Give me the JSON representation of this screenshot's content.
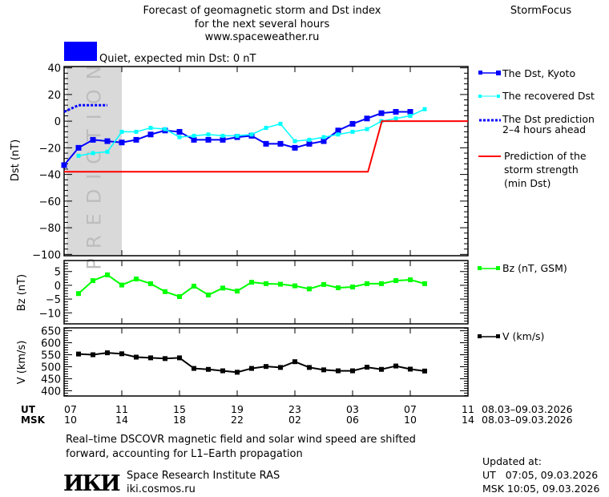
{
  "header": {
    "title_lines": [
      "Forecast of geomagnetic storm and Dst index",
      "for the next several hours",
      "www.spaceweather.ru"
    ],
    "brand": "StormFocus",
    "status_color": "#0000ff",
    "status_text": "Quiet, expected min Dst: 0 nT"
  },
  "prediction_label": "PREDICTION",
  "legend": {
    "kyoto": "The Dst, Kyoto",
    "recovered": "The recovered Dst",
    "prediction": [
      "The Dst prediction",
      "2–4 hours ahead"
    ],
    "storm": [
      "Prediction of the",
      "storm strength",
      "(min Dst)"
    ],
    "bz": "Bz (nT, GSM)",
    "v": "V (km/s)"
  },
  "time_axis": {
    "ut_label": "UT",
    "msk_label": "MSK",
    "ut_ticks": [
      "07",
      "11",
      "15",
      "19",
      "23",
      "03",
      "07",
      "11"
    ],
    "msk_ticks": [
      "10",
      "14",
      "18",
      "22",
      "02",
      "06",
      "10",
      "14"
    ],
    "date_range": "08.03–09.03.2026"
  },
  "footnote": [
    "Real–time DSCOVR magnetic field and solar wind speed are shifted",
    "forward, accounting for L1–Earth propagation"
  ],
  "institute": {
    "logo": "ИКИ",
    "name": "Space Research Institute RAS",
    "url": "iki.cosmos.ru"
  },
  "updated": {
    "label": "Updated at:",
    "ut": "UT   07:05, 09.03.2026",
    "msk": "MSK 10:05, 09.03.2026"
  },
  "chart_data": [
    {
      "type": "line",
      "ylabel": "Dst (nT)",
      "xlim_ut": [
        "07:00",
        "11:00"
      ],
      "ylim": [
        -101,
        41
      ],
      "yticks": [
        40,
        20,
        0,
        -20,
        -40,
        -60,
        -80,
        -100
      ],
      "prediction_region_ut": [
        "07:10",
        "11:00"
      ],
      "series": [
        {
          "name": "The Dst, Kyoto",
          "color": "#0000ff",
          "marker": "square",
          "x": [
            "07:00",
            "08:00",
            "09:00",
            "10:00",
            "11:00",
            "12:00",
            "13:00",
            "14:00",
            "15:00",
            "16:00",
            "17:00",
            "18:00",
            "19:00",
            "20:00",
            "21:00",
            "22:00",
            "23:00",
            "00:00",
            "01:00",
            "02:00",
            "03:00",
            "04:00",
            "05:00",
            "06:00",
            "07:00"
          ],
          "values": [
            -33,
            -20,
            -14,
            -15,
            -16,
            -14,
            -10,
            -7,
            -8,
            -14,
            -14,
            -14,
            -12,
            -11,
            -17,
            -17,
            -20,
            -17,
            -15,
            -7,
            -2,
            2,
            6,
            7,
            7
          ]
        },
        {
          "name": "The recovered Dst",
          "color": "#00ffff",
          "marker": "small-square",
          "x": [
            "08:00",
            "09:00",
            "10:00",
            "11:00",
            "12:00",
            "13:00",
            "14:00",
            "15:00",
            "16:00",
            "17:00",
            "18:00",
            "19:00",
            "20:00",
            "21:00",
            "22:00",
            "23:00",
            "00:00",
            "01:00",
            "02:00",
            "03:00",
            "04:00",
            "05:00",
            "06:00",
            "07:00",
            "08:00"
          ],
          "values": [
            -26,
            -24,
            -23,
            -8,
            -8,
            -5,
            -6,
            -12,
            -11,
            -10,
            -11,
            -11,
            -10,
            -5,
            -2,
            -15,
            -14,
            -12,
            -10,
            -8,
            -6,
            0,
            2,
            4,
            9
          ]
        },
        {
          "name": "The Dst prediction 2–4 hours ahead",
          "color": "#0000ff",
          "style": "dotted",
          "x": [
            "07:00",
            "08:00",
            "09:00",
            "10:00"
          ],
          "values": [
            7,
            12,
            12,
            12
          ]
        },
        {
          "name": "Prediction of the storm strength (min Dst)",
          "color": "#ff0000",
          "x": [
            "07:00",
            "04:04",
            "05:02",
            "11:00"
          ],
          "values": [
            -38,
            -38,
            0,
            0
          ]
        }
      ]
    },
    {
      "type": "line",
      "ylabel": "Bz (nT)",
      "ylim": [
        -14,
        9
      ],
      "yticks": [
        5,
        0,
        -5,
        -10
      ],
      "series": [
        {
          "name": "Bz (nT, GSM)",
          "color": "#00ff00",
          "marker": "square",
          "x": [
            "08:00",
            "09:00",
            "10:00",
            "11:00",
            "12:00",
            "13:00",
            "14:00",
            "15:00",
            "16:00",
            "17:00",
            "18:00",
            "19:00",
            "20:00",
            "21:00",
            "22:00",
            "23:00",
            "00:00",
            "01:00",
            "02:00",
            "03:00",
            "04:00",
            "05:00",
            "06:00",
            "07:00",
            "08:00"
          ],
          "values": [
            -3.0,
            1.7,
            3.8,
            0.1,
            2.3,
            0.6,
            -2.3,
            -4.1,
            -0.3,
            -3.5,
            -1.0,
            -2.1,
            1.1,
            0.6,
            0.4,
            -0.2,
            -1.3,
            0.3,
            -0.9,
            -0.6,
            0.6,
            0.6,
            1.7,
            2.0,
            0.6
          ]
        }
      ]
    },
    {
      "type": "line",
      "ylabel": "V (km/s)",
      "ylim": [
        378,
        662
      ],
      "yticks": [
        650,
        600,
        550,
        500,
        450,
        400
      ],
      "series": [
        {
          "name": "V (km/s)",
          "color": "#000000",
          "marker": "square",
          "x": [
            "08:00",
            "09:00",
            "10:00",
            "11:00",
            "12:00",
            "13:00",
            "14:00",
            "15:00",
            "16:00",
            "17:00",
            "18:00",
            "19:00",
            "20:00",
            "21:00",
            "22:00",
            "23:00",
            "00:00",
            "01:00",
            "02:00",
            "03:00",
            "04:00",
            "05:00",
            "06:00",
            "07:00",
            "08:00"
          ],
          "values": [
            553,
            550,
            558,
            554,
            540,
            537,
            534,
            537,
            493,
            489,
            483,
            477,
            493,
            501,
            497,
            521,
            497,
            487,
            483,
            483,
            498,
            489,
            503,
            490,
            482
          ]
        }
      ]
    }
  ]
}
